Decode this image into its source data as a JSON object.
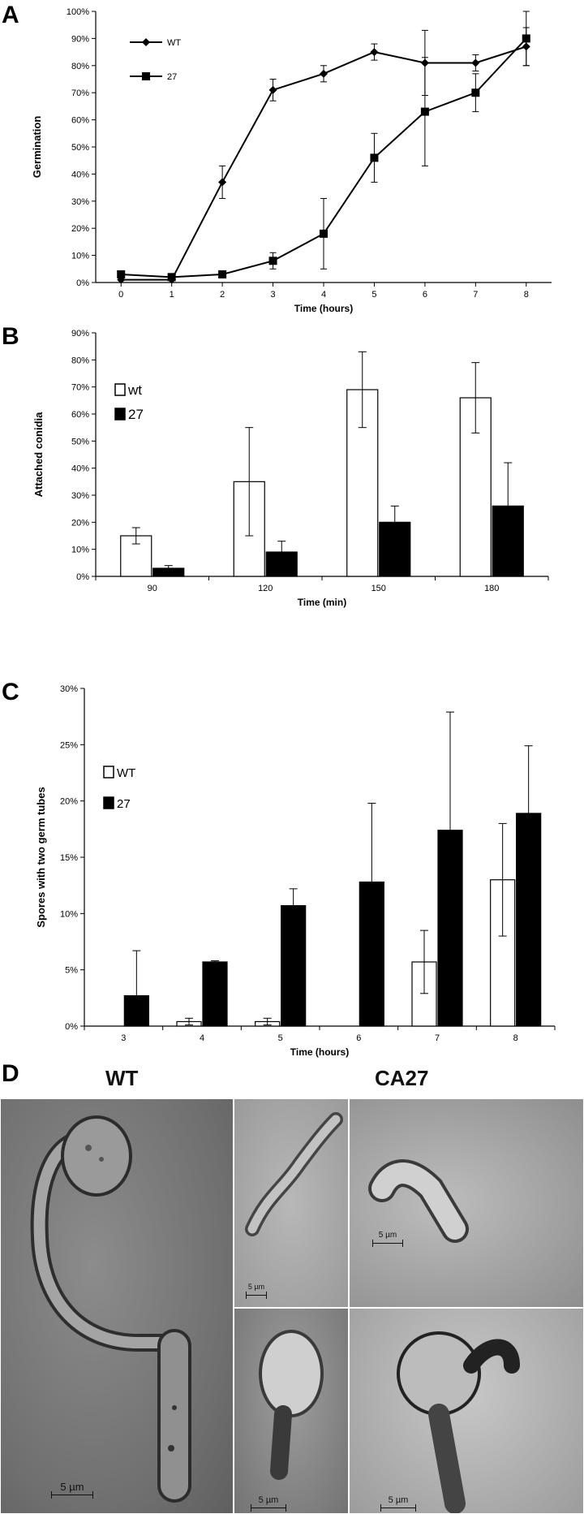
{
  "panels": {
    "A": "A",
    "B": "B",
    "C": "C",
    "D": "D"
  },
  "chart_data": [
    {
      "id": "A",
      "type": "line",
      "title": "",
      "xlabel": "Time (hours)",
      "ylabel": "Germination",
      "x": [
        0,
        1,
        2,
        3,
        4,
        5,
        6,
        7,
        8
      ],
      "x_ticks": [
        "0",
        "1",
        "2",
        "3",
        "4",
        "5",
        "6",
        "7",
        "8"
      ],
      "y_ticks": [
        "0%",
        "10%",
        "20%",
        "30%",
        "40%",
        "50%",
        "60%",
        "70%",
        "80%",
        "90%",
        "100%"
      ],
      "ylim": [
        0,
        100
      ],
      "legend_position": "top-left",
      "series": [
        {
          "name": "WT",
          "marker": "diamond",
          "values": [
            1,
            1,
            37,
            71,
            77,
            85,
            81,
            81,
            87
          ],
          "errors": [
            1,
            1,
            6,
            4,
            3,
            3,
            12,
            3,
            7
          ]
        },
        {
          "name": "27",
          "marker": "square",
          "values": [
            3,
            2,
            3,
            8,
            18,
            46,
            63,
            70,
            90
          ],
          "errors": [
            1,
            1,
            1,
            3,
            13,
            9,
            20,
            7,
            10
          ]
        }
      ]
    },
    {
      "id": "B",
      "type": "bar",
      "title": "",
      "xlabel": "Time (min)",
      "ylabel": "Attached conidia",
      "categories": [
        "90",
        "120",
        "150",
        "180"
      ],
      "y_ticks": [
        "0%",
        "10%",
        "20%",
        "30%",
        "40%",
        "50%",
        "60%",
        "70%",
        "80%",
        "90%"
      ],
      "ylim": [
        0,
        90
      ],
      "legend_position": "top-left",
      "series": [
        {
          "name": "wt",
          "fill": "#ffffff",
          "values": [
            15,
            35,
            69,
            66
          ],
          "errors": [
            3,
            20,
            14,
            13
          ]
        },
        {
          "name": "27",
          "fill": "#000000",
          "values": [
            3,
            9,
            20,
            26
          ],
          "errors": [
            1,
            4,
            6,
            16
          ]
        }
      ]
    },
    {
      "id": "C",
      "type": "bar",
      "title": "",
      "xlabel": "Time (hours)",
      "ylabel": "Spores with two germ tubes",
      "categories": [
        "3",
        "4",
        "5",
        "6",
        "7",
        "8"
      ],
      "y_ticks": [
        "0%",
        "5%",
        "10%",
        "15%",
        "20%",
        "25%",
        "30%"
      ],
      "ylim": [
        0,
        30
      ],
      "legend_position": "top-left",
      "series": [
        {
          "name": "WT",
          "fill": "#ffffff",
          "values": [
            0,
            0.4,
            0.4,
            0,
            5.7,
            13
          ],
          "errors": [
            0,
            0.3,
            0.3,
            0,
            2.8,
            5
          ]
        },
        {
          "name": "27",
          "fill": "#000000",
          "values": [
            2.7,
            5.7,
            10.7,
            12.8,
            17.4,
            18.9
          ],
          "errors": [
            4,
            0.1,
            1.5,
            7,
            10.5,
            6
          ]
        }
      ]
    }
  ],
  "micrographs": {
    "wt_label": "WT",
    "ca27_label": "CA27",
    "scale_wt": "5 µm",
    "scale_1": "5 µm",
    "scale_2": "5 µm",
    "scale_3": "5 µm",
    "scale_4": "5 µm"
  }
}
